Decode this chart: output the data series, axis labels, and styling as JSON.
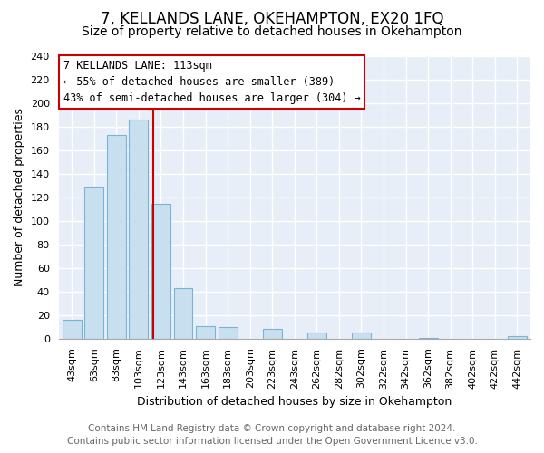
{
  "title": "7, KELLANDS LANE, OKEHAMPTON, EX20 1FQ",
  "subtitle": "Size of property relative to detached houses in Okehampton",
  "xlabel": "Distribution of detached houses by size in Okehampton",
  "ylabel": "Number of detached properties",
  "footer_line1": "Contains HM Land Registry data © Crown copyright and database right 2024.",
  "footer_line2": "Contains public sector information licensed under the Open Government Licence v3.0.",
  "bar_labels": [
    "43sqm",
    "63sqm",
    "83sqm",
    "103sqm",
    "123sqm",
    "143sqm",
    "163sqm",
    "183sqm",
    "203sqm",
    "223sqm",
    "243sqm",
    "262sqm",
    "282sqm",
    "302sqm",
    "322sqm",
    "342sqm",
    "362sqm",
    "382sqm",
    "402sqm",
    "422sqm",
    "442sqm"
  ],
  "bar_values": [
    16,
    129,
    173,
    186,
    114,
    43,
    11,
    10,
    0,
    8,
    0,
    5,
    0,
    5,
    0,
    0,
    1,
    0,
    0,
    0,
    2
  ],
  "bar_color": "#c8dff0",
  "bar_edge_color": "#7ab4d4",
  "annotation_box_text": "7 KELLANDS LANE: 113sqm",
  "annotation_line1": "← 55% of detached houses are smaller (389)",
  "annotation_line2": "43% of semi-detached houses are larger (304) →",
  "annotation_box_edge_color": "#cc0000",
  "annotation_box_facecolor": "#ffffff",
  "marker_line_color": "#cc0000",
  "ylim": [
    0,
    240
  ],
  "yticks": [
    0,
    20,
    40,
    60,
    80,
    100,
    120,
    140,
    160,
    180,
    200,
    220,
    240
  ],
  "plot_bg_color": "#e8eef8",
  "fig_bg_color": "#ffffff",
  "grid_color": "#ffffff",
  "title_fontsize": 12,
  "subtitle_fontsize": 10,
  "axis_label_fontsize": 9,
  "tick_fontsize": 8,
  "annotation_fontsize": 8.5,
  "footer_fontsize": 7.5,
  "marker_line_bar_index": 3.65
}
